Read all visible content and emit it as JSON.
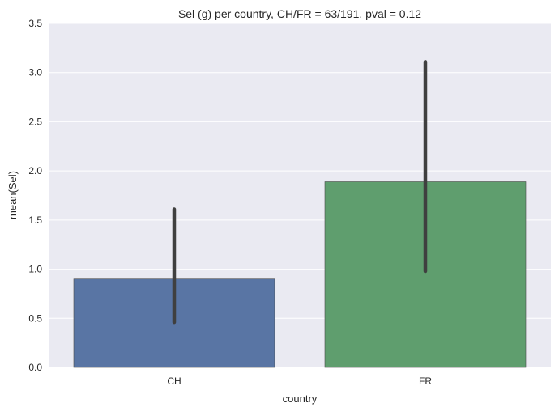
{
  "chart_data": {
    "type": "bar",
    "title": "Sel (g) per country, CH/FR = 63/191, pval = 0.12",
    "xlabel": "country",
    "ylabel": "mean(Sel)",
    "categories": [
      "CH",
      "FR"
    ],
    "values": [
      0.9,
      1.89
    ],
    "error_low": [
      0.46,
      0.98
    ],
    "error_high": [
      1.61,
      3.11
    ],
    "ylim": [
      0,
      3.5
    ],
    "yticks": [
      "0.0",
      "0.5",
      "1.0",
      "1.5",
      "2.0",
      "2.5",
      "3.0",
      "3.5"
    ],
    "grid": true,
    "colors": {
      "background": "#eaeaf2",
      "grid": "#ffffff",
      "bars": [
        "#5975a4",
        "#5f9e6e"
      ],
      "error_bars": "#3f3f3f"
    }
  }
}
